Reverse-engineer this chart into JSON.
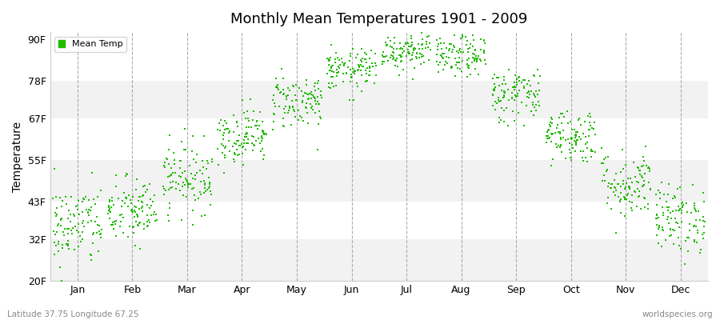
{
  "title": "Monthly Mean Temperatures 1901 - 2009",
  "ylabel": "Temperature",
  "yticks": [
    20,
    32,
    43,
    55,
    67,
    78,
    90
  ],
  "ytick_labels": [
    "20F",
    "32F",
    "43F",
    "55F",
    "67F",
    "78F",
    "90F"
  ],
  "ylim": [
    20,
    92
  ],
  "months": [
    "Jan",
    "Feb",
    "Mar",
    "Apr",
    "May",
    "Jun",
    "Jul",
    "Aug",
    "Sep",
    "Oct",
    "Nov",
    "Dec"
  ],
  "dot_color": "#22BB00",
  "bg_color": "#FFFFFF",
  "band_colors": [
    "#F2F2F2",
    "#FFFFFF"
  ],
  "footer_left": "Latitude 37.75 Longitude 67.25",
  "footer_right": "worldspecies.org",
  "legend_label": "Mean Temp",
  "monthly_means": [
    36,
    40,
    50,
    62,
    72,
    81,
    87,
    85,
    74,
    62,
    48,
    38
  ],
  "monthly_stds": [
    6,
    5,
    5,
    4,
    4,
    3,
    3,
    3,
    4,
    4,
    5,
    5
  ],
  "n_years": 109,
  "seed": 42
}
